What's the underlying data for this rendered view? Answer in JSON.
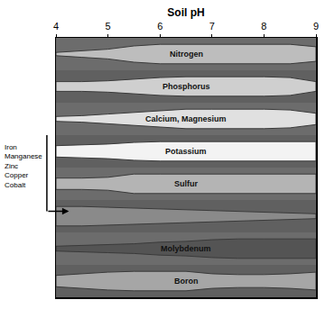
{
  "chart_data": {
    "type": "band",
    "x_label": "Soil pH",
    "x": [
      4,
      4.5,
      5,
      5.5,
      6,
      6.5,
      7,
      7.5,
      8,
      8.5,
      9
    ],
    "xlim": [
      4,
      9
    ],
    "xticks": [
      4,
      5,
      6,
      7,
      8,
      9
    ],
    "ylim": [
      0,
      8
    ],
    "tick_labels": "x",
    "grid": false,
    "series": [
      {
        "name": "Nitrogen",
        "color": "#bdbdbd",
        "values": [
          0.1,
          0.2,
          0.3,
          0.5,
          0.6,
          0.6,
          0.6,
          0.6,
          0.6,
          0.6,
          0.45
        ]
      },
      {
        "name": "Phosphorus",
        "color": "#cfcfcf",
        "values": [
          0.3,
          0.3,
          0.35,
          0.45,
          0.55,
          0.6,
          0.6,
          0.6,
          0.6,
          0.55,
          0.3
        ]
      },
      {
        "name": "Calcium, Magnesium",
        "color": "#e0e0e0",
        "values": [
          0.15,
          0.2,
          0.3,
          0.4,
          0.5,
          0.6,
          0.6,
          0.6,
          0.6,
          0.55,
          0.35
        ]
      },
      {
        "name": "Potassium",
        "color": "#f3f3f3",
        "values": [
          0.35,
          0.4,
          0.45,
          0.55,
          0.6,
          0.6,
          0.6,
          0.6,
          0.6,
          0.6,
          0.6
        ]
      },
      {
        "name": "Sulfur",
        "color": "#b4b4b4",
        "values": [
          0.35,
          0.35,
          0.4,
          0.6,
          0.6,
          0.6,
          0.6,
          0.6,
          0.6,
          0.6,
          0.6
        ]
      },
      {
        "name": "Iron Manganese Zinc Copper Cobalt",
        "color": "#8a8a8a",
        "values": [
          0.6,
          0.6,
          0.55,
          0.5,
          0.45,
          0.4,
          0.35,
          0.3,
          0.25,
          0.2,
          0.15
        ]
      },
      {
        "name": "Molybdenum",
        "color": "#545454",
        "values": [
          0.15,
          0.2,
          0.25,
          0.3,
          0.4,
          0.45,
          0.55,
          0.6,
          0.6,
          0.6,
          0.6
        ]
      },
      {
        "name": "Boron",
        "color": "#a6a6a6",
        "values": [
          0.35,
          0.45,
          0.55,
          0.6,
          0.6,
          0.6,
          0.45,
          0.4,
          0.4,
          0.45,
          0.55
        ]
      }
    ]
  }
}
